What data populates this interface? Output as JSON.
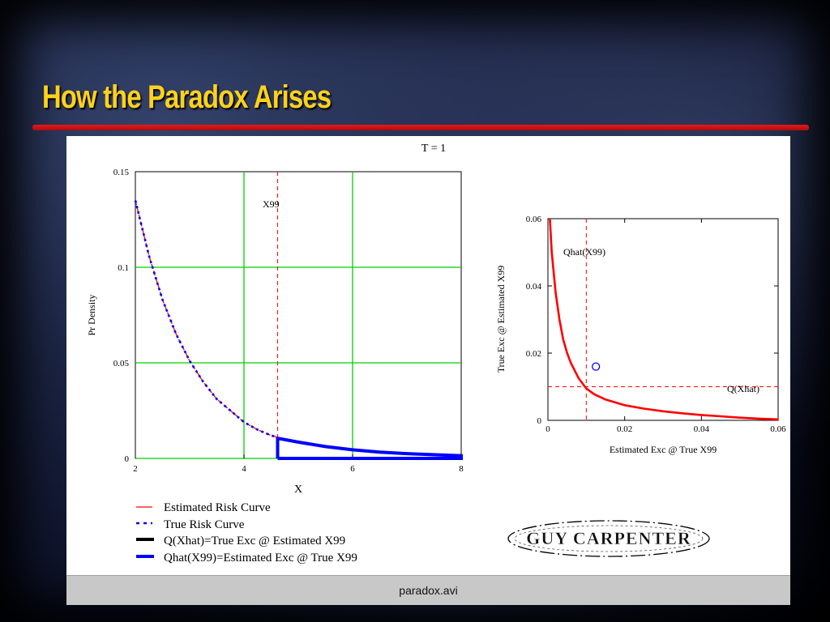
{
  "slide": {
    "title": "How the Paradox Arises"
  },
  "status_bar": {
    "filename": "paradox.avi"
  },
  "logo": {
    "text": "GUY CARPENTER"
  },
  "chart_data": [
    {
      "type": "line",
      "title": "T = 1",
      "xlabel": "X",
      "ylabel": "Pr Density",
      "xlim": [
        2,
        8
      ],
      "ylim": [
        0,
        0.15
      ],
      "x_ticks": [
        "2",
        "4",
        "6",
        "8"
      ],
      "y_ticks": [
        "0",
        "0.05",
        "0.1",
        "0.15"
      ],
      "grid": true,
      "annotations": [
        {
          "text": "X99",
          "x": 4.62
        }
      ],
      "series": [
        {
          "name": "Estimated Risk Curve",
          "color": "#ff0000",
          "style": "dash",
          "x": [
            2.0,
            2.25,
            2.5,
            2.75,
            3.0,
            3.25,
            3.5,
            3.75,
            4.0,
            4.25,
            4.5,
            4.62
          ],
          "y": [
            0.135,
            0.106,
            0.083,
            0.065,
            0.051,
            0.04,
            0.031,
            0.025,
            0.019,
            0.015,
            0.012,
            0.011
          ]
        },
        {
          "name": "True Risk Curve",
          "color": "#0000ff",
          "style": "dot",
          "x": [
            2.0,
            2.25,
            2.5,
            2.75,
            3.0,
            3.25,
            3.5,
            3.75,
            4.0,
            4.25,
            4.5,
            4.62
          ],
          "y": [
            0.135,
            0.106,
            0.083,
            0.065,
            0.051,
            0.04,
            0.031,
            0.025,
            0.019,
            0.015,
            0.012,
            0.011
          ]
        },
        {
          "name": "Q(Xhat)=True Exc @ Estimated X99",
          "color": "#000000",
          "style": "solid",
          "x": [],
          "y": []
        },
        {
          "name": "Qhat(X99)=Estimated Exc @ True X99",
          "color": "#0000ff",
          "style": "solid",
          "x": [
            4.62,
            4.62,
            5.0,
            5.5,
            6.0,
            6.5,
            7.0,
            8.0,
            8.0,
            4.62
          ],
          "y": [
            0.0,
            0.0105,
            0.0085,
            0.0062,
            0.0045,
            0.0033,
            0.0025,
            0.0014,
            0.0,
            0.0
          ]
        }
      ]
    },
    {
      "type": "line",
      "xlabel": "Estimated Exc @ True X99",
      "ylabel": "True Exc @ Estimated X99",
      "xlim": [
        0,
        0.06
      ],
      "ylim": [
        0,
        0.06
      ],
      "x_ticks": [
        "0",
        "0.02",
        "0.04",
        "0.06"
      ],
      "y_ticks": [
        "0",
        "0.02",
        "0.04",
        "0.06"
      ],
      "grid": false,
      "annotations": [
        {
          "text": "Qhat(X99)",
          "x": 0.01
        },
        {
          "text": "Q(Xhat)",
          "y": 0.01
        }
      ],
      "series": [
        {
          "color": "#ff0000",
          "style": "solid",
          "x": [
            0.0005,
            0.001,
            0.002,
            0.003,
            0.004,
            0.005,
            0.006,
            0.008,
            0.01,
            0.012,
            0.015,
            0.02,
            0.025,
            0.03,
            0.035,
            0.04,
            0.045,
            0.05,
            0.055,
            0.06
          ],
          "y": [
            0.06,
            0.05,
            0.038,
            0.03,
            0.024,
            0.02,
            0.017,
            0.0125,
            0.0095,
            0.0078,
            0.0062,
            0.0045,
            0.0035,
            0.0027,
            0.0021,
            0.0016,
            0.0012,
            0.0008,
            0.0005,
            0.0003
          ]
        },
        {
          "color": "#0000ff",
          "style": "marker",
          "x": [
            0.0125
          ],
          "y": [
            0.016
          ]
        }
      ]
    }
  ]
}
